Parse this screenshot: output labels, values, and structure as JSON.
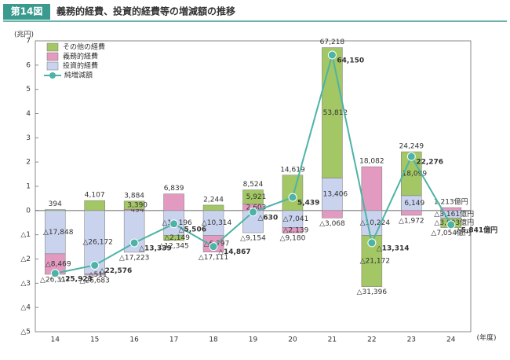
{
  "chart_data": {
    "type": "bar",
    "figure_label": "第14図",
    "title": "義務的経費、投資的経費等の増減額の推移",
    "ylabel": "(兆円)",
    "xlabel": "(年度)",
    "categories": [
      "14",
      "15",
      "16",
      "17",
      "18",
      "19",
      "20",
      "21",
      "22",
      "23",
      "24"
    ],
    "ylim": [
      -5,
      7
    ],
    "yticks": [
      {
        "value": -5,
        "label": "△5"
      },
      {
        "value": -4,
        "label": "△4"
      },
      {
        "value": -3,
        "label": "△3"
      },
      {
        "value": -2,
        "label": "△2"
      },
      {
        "value": -1,
        "label": "△1"
      },
      0,
      1,
      2,
      3,
      4,
      5,
      6,
      7
    ],
    "series": [
      {
        "name": "投資的経費",
        "color": "#c9d3ee",
        "values": [
          -1.7848,
          -2.6172,
          -1.7223,
          -1.0196,
          -1.0314,
          -0.9154,
          -0.7041,
          1.3406,
          -1.0224,
          0.6149,
          -0.3161
        ],
        "value_labels": [
          "△17,848",
          "△26,172",
          "△17,223",
          "△10,196",
          "△10,314",
          "△9,154",
          "△7,041",
          "13,406",
          "△10,224",
          "6,149",
          "△3,161億円"
        ]
      },
      {
        "name": "義務的経費",
        "color": "#e39ac0",
        "values": [
          -0.8469,
          -0.0511,
          0.0494,
          0.6839,
          -0.6797,
          0.2603,
          -0.2139,
          -0.3068,
          1.8082,
          -0.1972,
          0.1213
        ],
        "value_labels": [
          "△8,469",
          "△511",
          "494",
          "6,839",
          "△6,797",
          "2,603",
          "△2,139",
          "△3,068",
          "18,082",
          "△1,972",
          "1,213億円"
        ]
      },
      {
        "name": "その他の経費",
        "color": "#a3c764",
        "values": [
          0.0394,
          0.4107,
          0.339,
          -0.2149,
          0.2244,
          0.5921,
          1.4619,
          5.3812,
          -2.1172,
          1.8099,
          -0.3893
        ],
        "value_labels": [
          "394",
          "4,107",
          "3,390",
          "△2,149",
          "2,244",
          "5,921",
          "14,619",
          "53,812",
          "△21,172",
          "18,099",
          "△3,893億円"
        ]
      }
    ],
    "net": {
      "name": "純増減額",
      "color": "#4db3a6",
      "values": [
        -2.5923,
        -2.2576,
        -1.3339,
        -0.5506,
        -1.4867,
        -0.063,
        0.5439,
        6.415,
        -1.3314,
        2.2276,
        -0.5841
      ],
      "value_labels": [
        "△25,923",
        "△22,576",
        "△13,339",
        "△5,506",
        "△14,867",
        "△630",
        "5,439",
        "64,150",
        "△13,314",
        "22,276",
        "△5,841億円"
      ]
    },
    "totals_positive": {
      "values": [
        null,
        null,
        0.3884,
        null,
        null,
        0.8524,
        null,
        6.7218,
        null,
        2.4249,
        null
      ],
      "value_labels": [
        null,
        null,
        "3,884",
        null,
        null,
        "8,524",
        null,
        "67,218",
        null,
        "24,249",
        null
      ]
    },
    "totals_negative": {
      "values": [
        -2.6317,
        -2.6683,
        null,
        -1.2345,
        -1.7111,
        null,
        -0.918,
        null,
        -3.1396,
        null,
        -0.7054
      ],
      "value_labels": [
        "△26,317",
        "△26,683",
        null,
        "△12,345",
        "△17,111",
        null,
        "△9,180",
        null,
        "△31,396",
        null,
        "△7,054億円"
      ]
    }
  }
}
